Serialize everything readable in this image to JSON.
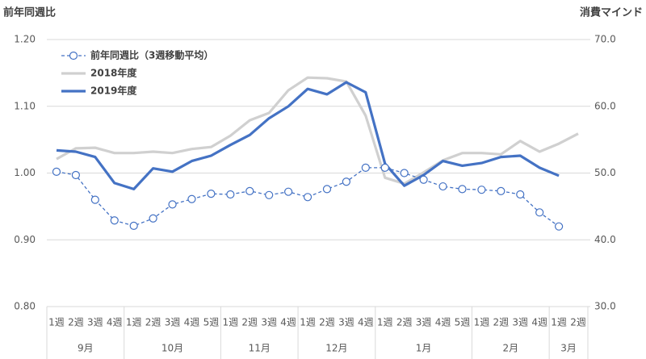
{
  "chart_data": {
    "type": "line",
    "title_left": "前年同週比",
    "title_right": "消費マインド",
    "groups": [
      {
        "name": "9月",
        "weeks": [
          "1週",
          "2週",
          "3週",
          "4週"
        ]
      },
      {
        "name": "10月",
        "weeks": [
          "1週",
          "2週",
          "3週",
          "4週",
          "5週"
        ]
      },
      {
        "name": "11月",
        "weeks": [
          "1週",
          "2週",
          "3週",
          "4週"
        ]
      },
      {
        "name": "12月",
        "weeks": [
          "1週",
          "2週",
          "3週",
          "4週"
        ]
      },
      {
        "name": "1月",
        "weeks": [
          "1週",
          "2週",
          "3週",
          "4週",
          "5週"
        ]
      },
      {
        "name": "2月",
        "weeks": [
          "1週",
          "2週",
          "3週",
          "4週"
        ]
      },
      {
        "name": "3月",
        "weeks": [
          "1週",
          "2週"
        ]
      }
    ],
    "series": [
      {
        "name": "前年同週比（3週移動平均）",
        "color": "#4472c4",
        "style": "dashed",
        "axis": "y",
        "values": [
          1.002,
          0.997,
          0.96,
          0.929,
          0.921,
          0.932,
          0.953,
          0.961,
          0.969,
          0.968,
          0.973,
          0.967,
          0.972,
          0.964,
          0.976,
          0.987,
          1.008,
          1.008,
          1.0,
          0.99,
          0.98,
          0.976,
          0.975,
          0.973,
          0.968,
          0.941,
          0.92,
          null
        ]
      },
      {
        "name": "2018年度",
        "color": "#d0d0d0",
        "style": "solid",
        "axis": "y2",
        "values": [
          52.1,
          53.7,
          53.8,
          53.0,
          53.0,
          53.2,
          53.0,
          53.6,
          53.9,
          55.6,
          57.9,
          59.0,
          62.4,
          64.3,
          64.2,
          63.7,
          58.6,
          49.3,
          48.4,
          50.1,
          51.9,
          53.0,
          53.0,
          52.8,
          54.8,
          53.2,
          54.4,
          55.9
        ]
      },
      {
        "name": "2019年度",
        "color": "#4472c4",
        "style": "solid",
        "axis": "y2",
        "values": [
          53.4,
          53.2,
          52.4,
          48.5,
          47.6,
          50.7,
          50.2,
          51.8,
          52.6,
          54.2,
          55.7,
          58.2,
          60.0,
          62.6,
          61.8,
          63.6,
          62.1,
          51.4,
          48.1,
          49.7,
          51.8,
          51.1,
          51.5,
          52.4,
          52.6,
          50.8,
          49.6,
          null
        ]
      }
    ],
    "ylim": [
      0.8,
      1.2
    ],
    "yticks": [
      {
        "value": 0.8,
        "label": "0.80"
      },
      {
        "value": 0.9,
        "label": "0.90"
      },
      {
        "value": 1.0,
        "label": "1.00"
      },
      {
        "value": 1.1,
        "label": "1.10"
      },
      {
        "value": 1.2,
        "label": "1.20"
      }
    ],
    "y2lim": [
      30,
      70
    ],
    "y2ticks": [
      {
        "value": 30,
        "label": "30.0"
      },
      {
        "value": 40,
        "label": "40.0"
      },
      {
        "value": 50,
        "label": "50.0"
      },
      {
        "value": 60,
        "label": "60.0"
      },
      {
        "value": 70,
        "label": "70.0"
      }
    ],
    "grid": true
  }
}
